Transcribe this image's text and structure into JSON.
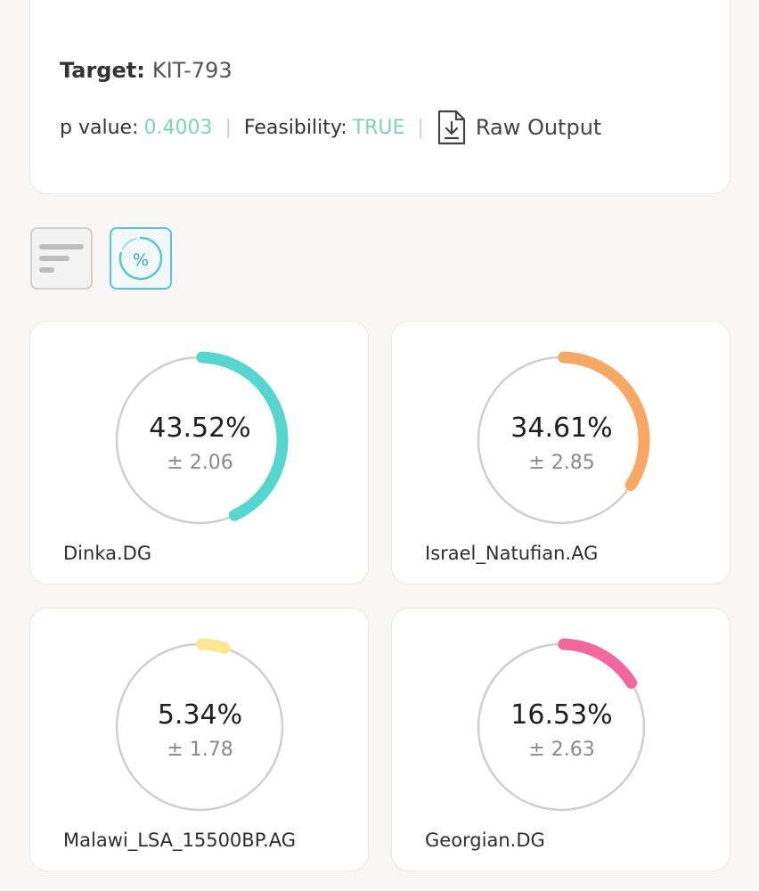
{
  "header": {
    "target_label": "Target:",
    "target_value": "KIT-793",
    "p_value_label": "p value:",
    "p_value": "0.4003",
    "feasibility_label": "Feasibility:",
    "feasibility": "TRUE",
    "separator": "|",
    "raw_output_label": "Raw Output"
  },
  "colors": {
    "good_value": "#7fd2b3",
    "track": "#cfcfcf",
    "active_toggle": "#5ac7cb"
  },
  "toggles": {
    "list_icon": "list-lines-icon",
    "percent_icon": "percent-circle-icon",
    "percent_glyph": "%"
  },
  "populations": [
    {
      "name": "Dinka.DG",
      "percent_label": "43.52%",
      "error_label": "± 2.06",
      "percent": 43.52,
      "color": "#57d6d0"
    },
    {
      "name": "Israel_Natufian.AG",
      "percent_label": "34.61%",
      "error_label": "± 2.85",
      "percent": 34.61,
      "color": "#f8a865"
    },
    {
      "name": "Malawi_LSA_15500BP.AG",
      "percent_label": "5.34%",
      "error_label": "± 1.78",
      "percent": 5.34,
      "color": "#fbe78f"
    },
    {
      "name": "Georgian.DG",
      "percent_label": "16.53%",
      "error_label": "± 2.63",
      "percent": 16.53,
      "color": "#f2679c"
    }
  ]
}
